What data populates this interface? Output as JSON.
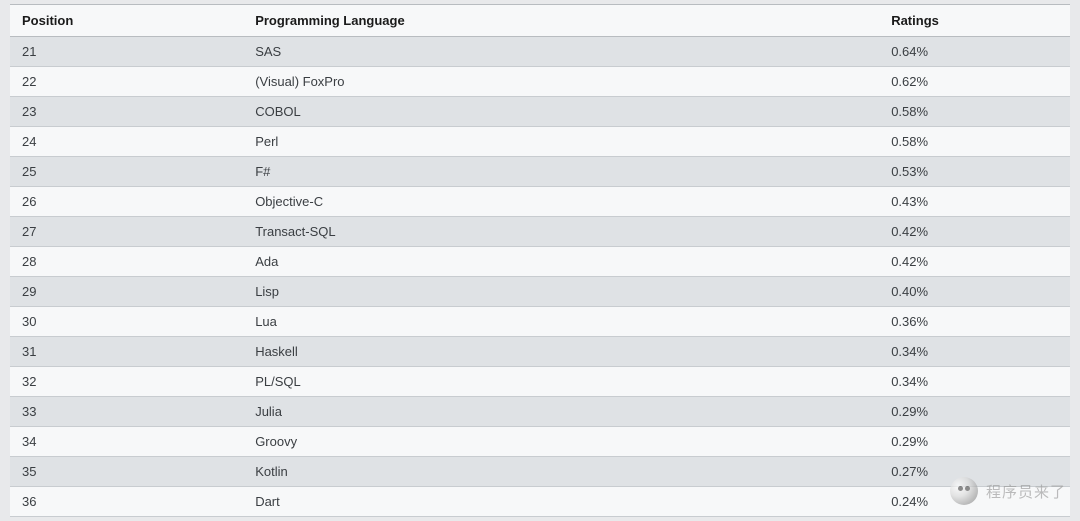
{
  "table": {
    "columns": [
      {
        "key": "position",
        "label": "Position",
        "class": "col-position"
      },
      {
        "key": "language",
        "label": "Programming Language",
        "class": "col-language"
      },
      {
        "key": "ratings",
        "label": "Ratings",
        "class": "col-ratings"
      }
    ],
    "rows": [
      {
        "position": "21",
        "language": "SAS",
        "ratings": "0.64%"
      },
      {
        "position": "22",
        "language": "(Visual) FoxPro",
        "ratings": "0.62%"
      },
      {
        "position": "23",
        "language": "COBOL",
        "ratings": "0.58%"
      },
      {
        "position": "24",
        "language": "Perl",
        "ratings": "0.58%"
      },
      {
        "position": "25",
        "language": "F#",
        "ratings": "0.53%"
      },
      {
        "position": "26",
        "language": "Objective-C",
        "ratings": "0.43%"
      },
      {
        "position": "27",
        "language": "Transact-SQL",
        "ratings": "0.42%"
      },
      {
        "position": "28",
        "language": "Ada",
        "ratings": "0.42%"
      },
      {
        "position": "29",
        "language": "Lisp",
        "ratings": "0.40%"
      },
      {
        "position": "30",
        "language": "Lua",
        "ratings": "0.36%"
      },
      {
        "position": "31",
        "language": "Haskell",
        "ratings": "0.34%"
      },
      {
        "position": "32",
        "language": "PL/SQL",
        "ratings": "0.34%"
      },
      {
        "position": "33",
        "language": "Julia",
        "ratings": "0.29%"
      },
      {
        "position": "34",
        "language": "Groovy",
        "ratings": "0.29%"
      },
      {
        "position": "35",
        "language": "Kotlin",
        "ratings": "0.27%"
      },
      {
        "position": "36",
        "language": "Dart",
        "ratings": "0.24%"
      }
    ]
  },
  "watermark": {
    "text": "程序员来了"
  },
  "colors": {
    "header_bg": "#f7f8f9",
    "row_odd_bg": "#dfe2e5",
    "row_even_bg": "#f7f8f9",
    "border": "#c8ccd0",
    "text_header": "#1a1a1a",
    "text_body": "#3a3e42",
    "page_bg": "#e8e9eb"
  }
}
